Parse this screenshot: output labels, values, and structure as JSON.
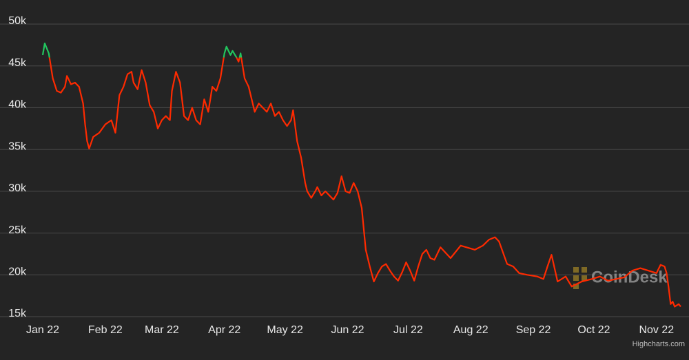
{
  "chart_data": {
    "type": "line",
    "credit": "Highcharts.com",
    "watermark": "CoinDesk",
    "color": "#ff2a00",
    "threshold_color": "#22c55e",
    "color_threshold": 46000,
    "grid": true,
    "xlim": [
      0,
      316
    ],
    "xticks": [
      {
        "value": 0,
        "label": "Jan 22"
      },
      {
        "value": 31,
        "label": "Feb 22"
      },
      {
        "value": 59,
        "label": "Mar 22"
      },
      {
        "value": 90,
        "label": "Apr 22"
      },
      {
        "value": 120,
        "label": "May 22"
      },
      {
        "value": 151,
        "label": "Jun 22"
      },
      {
        "value": 181,
        "label": "Jul 22"
      },
      {
        "value": 212,
        "label": "Aug 22"
      },
      {
        "value": 243,
        "label": "Sep 22"
      },
      {
        "value": 273,
        "label": "Oct 22"
      },
      {
        "value": 304,
        "label": "Nov 22"
      }
    ],
    "ylim": [
      15000,
      50000
    ],
    "yticks": [
      {
        "value": 15000,
        "label": "15k"
      },
      {
        "value": 20000,
        "label": "20k"
      },
      {
        "value": 25000,
        "label": "25k"
      },
      {
        "value": 30000,
        "label": "30k"
      },
      {
        "value": 35000,
        "label": "35k"
      },
      {
        "value": 40000,
        "label": "40k"
      },
      {
        "value": 45000,
        "label": "45k"
      },
      {
        "value": 50000,
        "label": "50k"
      }
    ],
    "x": [
      0,
      1,
      3,
      5,
      7,
      9,
      11,
      12,
      14,
      16,
      18,
      20,
      21,
      22,
      23,
      25,
      28,
      31,
      34,
      36,
      38,
      40,
      42,
      44,
      45,
      47,
      49,
      51,
      53,
      55,
      57,
      59,
      61,
      63,
      64,
      66,
      68,
      70,
      72,
      74,
      76,
      78,
      80,
      82,
      84,
      86,
      88,
      90,
      91,
      93,
      94,
      96,
      97,
      98,
      100,
      102,
      104,
      105,
      107,
      109,
      111,
      113,
      115,
      117,
      119,
      121,
      123,
      124,
      126,
      128,
      130,
      131,
      133,
      135,
      136,
      138,
      140,
      142,
      144,
      146,
      148,
      150,
      152,
      154,
      156,
      158,
      160,
      162,
      164,
      166,
      168,
      170,
      172,
      174,
      176,
      178,
      180,
      182,
      184,
      186,
      188,
      190,
      192,
      194,
      197,
      202,
      207,
      214,
      218,
      221,
      224,
      226,
      230,
      233,
      236,
      240,
      245,
      248,
      250,
      252,
      255,
      259,
      262,
      267,
      272,
      276,
      280,
      284,
      288,
      292,
      296,
      300,
      304,
      306,
      308,
      309,
      310,
      311,
      312,
      313,
      315,
      316
    ],
    "values": [
      46300,
      47700,
      46500,
      43500,
      42000,
      41800,
      42500,
      43800,
      42800,
      43000,
      42500,
      40500,
      38000,
      36000,
      35100,
      36500,
      37000,
      38000,
      38500,
      37000,
      41500,
      42500,
      44000,
      44300,
      43000,
      42200,
      44500,
      43000,
      40300,
      39500,
      37500,
      38500,
      39000,
      38500,
      42000,
      44300,
      43000,
      39000,
      38500,
      40000,
      38500,
      38000,
      41000,
      39500,
      42500,
      42000,
      43500,
      46500,
      47300,
      46300,
      46800,
      46000,
      45500,
      46500,
      43500,
      42500,
      40500,
      39500,
      40500,
      40000,
      39500,
      40500,
      39000,
      39500,
      38500,
      37800,
      38500,
      39700,
      36000,
      34000,
      31000,
      30000,
      29200,
      30000,
      30500,
      29500,
      30000,
      29500,
      29000,
      29800,
      31800,
      30000,
      29800,
      31000,
      30000,
      28000,
      23000,
      21000,
      19200,
      20200,
      21000,
      21300,
      20500,
      19800,
      19300,
      20300,
      21500,
      20500,
      19300,
      21000,
      22500,
      23000,
      22000,
      21800,
      23300,
      22000,
      23500,
      23000,
      23500,
      24200,
      24500,
      24000,
      21300,
      21000,
      20200,
      20000,
      19800,
      19500,
      21000,
      22400,
      19200,
      19800,
      18600,
      19200,
      19500,
      19800,
      19300,
      19500,
      19700,
      20500,
      20800,
      20500,
      20200,
      21200,
      21000,
      20200,
      18500,
      16500,
      16800,
      16200,
      16500,
      16200
    ]
  }
}
